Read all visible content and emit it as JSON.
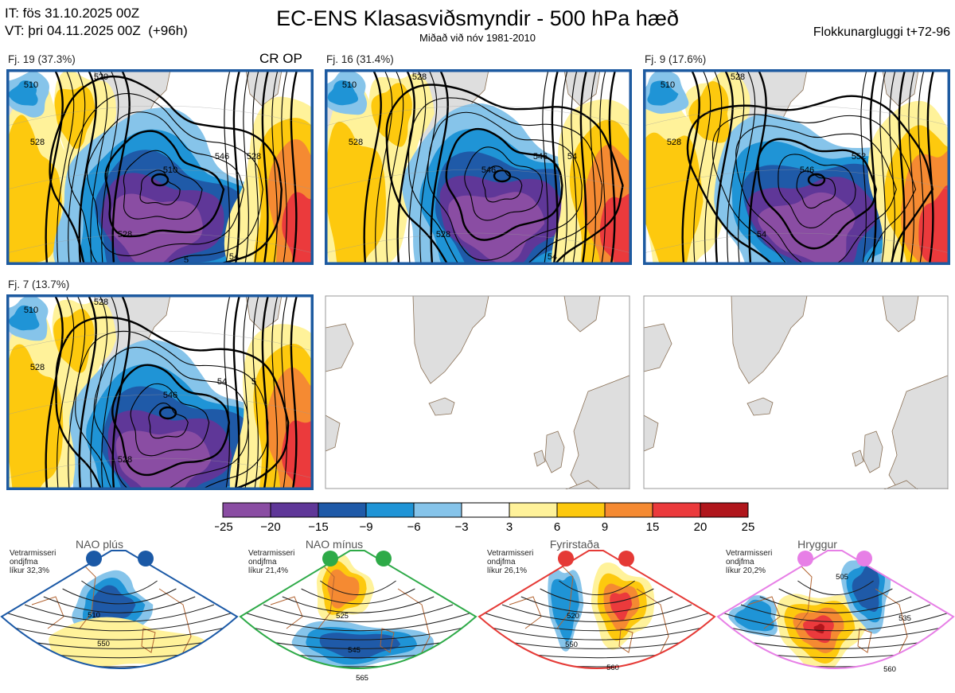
{
  "header": {
    "it": "IT: fös 31.10.2025 00Z",
    "vt": "VT: þri 04.11.2025 00Z",
    "lead": "(+96h)",
    "title": "EC-ENS Klasasviðsmyndir - 500 hPa hæð",
    "subtitle": "Miðað við nóv 1981-2010",
    "window": "Flokkunargluggi t+72-96"
  },
  "cr_op": "CR OP",
  "colors": {
    "frame": "#1d5aa0",
    "land": "#dedede",
    "coast": "#8a7055",
    "contour": "#000000",
    "nao_plus": "#1b59a6",
    "nao_minus": "#2eaa48",
    "blocking": "#e53a36",
    "ridge": "#e77fe6",
    "regime_coast": "#b26432"
  },
  "clusters": [
    {
      "label": "Fj. 19 (37.3%)",
      "contours": [
        "510",
        "520",
        "528",
        "510",
        "528",
        "546",
        "528",
        "54",
        "5"
      ]
    },
    {
      "label": "Fj. 16 (31.4%)",
      "contours": [
        "510",
        "528",
        "528",
        "546",
        "528",
        "546",
        "54",
        "54"
      ]
    },
    {
      "label": "Fj. 9 (17.6%)",
      "contours": [
        "510",
        "528",
        "528",
        "546",
        "54",
        "552"
      ]
    },
    {
      "label": "Fj. 7 (13.7%)",
      "contours": [
        "510",
        "528",
        "528",
        "546",
        "528",
        "54",
        "5"
      ]
    }
  ],
  "chart_data": {
    "type": "heatmap",
    "title": "EC-ENS Klasasviðsmyndir - 500 hPa hæð",
    "colorbar": {
      "ticks": [
        "−25",
        "−20",
        "−15",
        "−9",
        "−6",
        "−3",
        "3",
        "6",
        "9",
        "15",
        "20",
        "25"
      ],
      "bounds": [
        -25,
        -20,
        -15,
        -9,
        -6,
        -3,
        3,
        6,
        9,
        15,
        20,
        25
      ],
      "colors": [
        "#8a4da3",
        "#5f3798",
        "#1f5aa8",
        "#1f94d6",
        "#86c4ea",
        "#ffffff",
        "#fff29a",
        "#fdc90e",
        "#f58a32",
        "#eb3a3c",
        "#b0161c"
      ]
    },
    "regimes": [
      {
        "name": "NAO plús",
        "text": [
          "Vetrarmisseri",
          "ondjfma",
          "líkur 32,3%"
        ],
        "probability": 32.3,
        "labels": [
          "510",
          "550"
        ]
      },
      {
        "name": "NAO mínus",
        "text": [
          "Vetrarmisseri",
          "ondjfma",
          "líkur 21,4%"
        ],
        "probability": 21.4,
        "labels": [
          "525",
          "545",
          "565"
        ]
      },
      {
        "name": "Fyrirstaða",
        "text": [
          "Vetrarmisseri",
          "ondjfma",
          "líkur 26,1%"
        ],
        "probability": 26.1,
        "labels": [
          "520",
          "550",
          "560"
        ]
      },
      {
        "name": "Hryggur",
        "text": [
          "Vetrarmisseri",
          "ondjfma",
          "líkur 20,2%"
        ],
        "probability": 20.2,
        "labels": [
          "505",
          "535",
          "560"
        ]
      }
    ]
  }
}
